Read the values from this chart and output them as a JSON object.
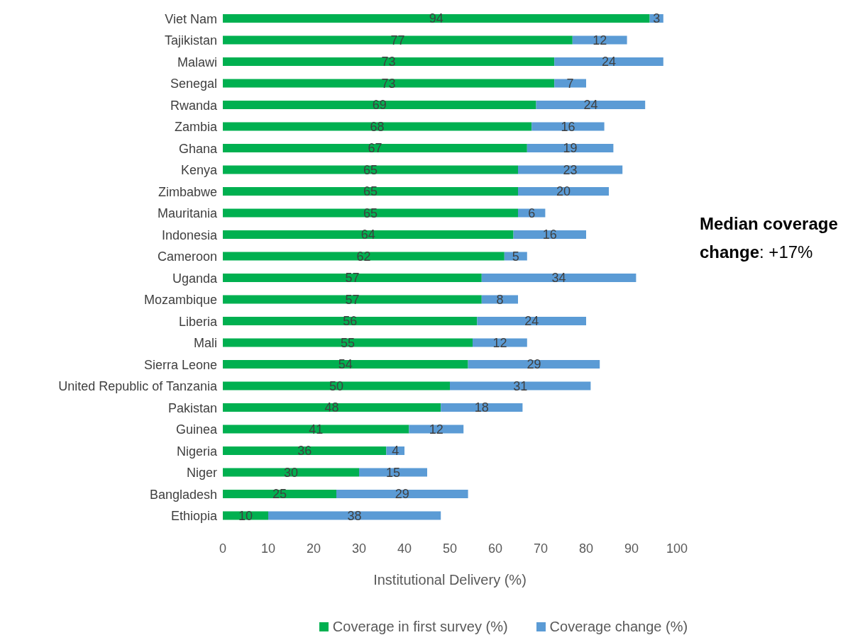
{
  "chart_data": {
    "type": "bar",
    "orientation": "horizontal",
    "stacked": true,
    "data_labels": true,
    "legend": "bottom",
    "xlabel": "Institutional Delivery (%)",
    "annotations": [
      "Median coverage change: +17%"
    ],
    "categories": [
      "Viet Nam",
      "Tajikistan",
      "Malawi",
      "Senegal",
      "Rwanda",
      "Zambia",
      "Ghana",
      "Kenya",
      "Zimbabwe",
      "Mauritania",
      "Indonesia",
      "Cameroon",
      "Uganda",
      "Mozambique",
      "Liberia",
      "Mali",
      "Sierra Leone",
      "United Republic of Tanzania",
      "Pakistan",
      "Guinea",
      "Nigeria",
      "Niger",
      "Bangladesh",
      "Ethiopia"
    ],
    "xlim": [
      0,
      100
    ],
    "xticks": [
      0,
      10,
      20,
      30,
      40,
      50,
      60,
      70,
      80,
      90,
      100
    ],
    "series": [
      {
        "name": "Coverage in first survey (%)",
        "color": "#00b050",
        "values": [
          94,
          77,
          73,
          73,
          69,
          68,
          67,
          65,
          65,
          65,
          64,
          62,
          57,
          57,
          56,
          55,
          54,
          50,
          48,
          41,
          36,
          30,
          25,
          10
        ]
      },
      {
        "name": "Coverage change  (%)",
        "color": "#5b9bd5",
        "values": [
          3,
          12,
          24,
          7,
          24,
          16,
          19,
          23,
          20,
          6,
          16,
          5,
          34,
          8,
          24,
          12,
          29,
          31,
          18,
          12,
          4,
          15,
          29,
          38
        ]
      }
    ]
  }
}
